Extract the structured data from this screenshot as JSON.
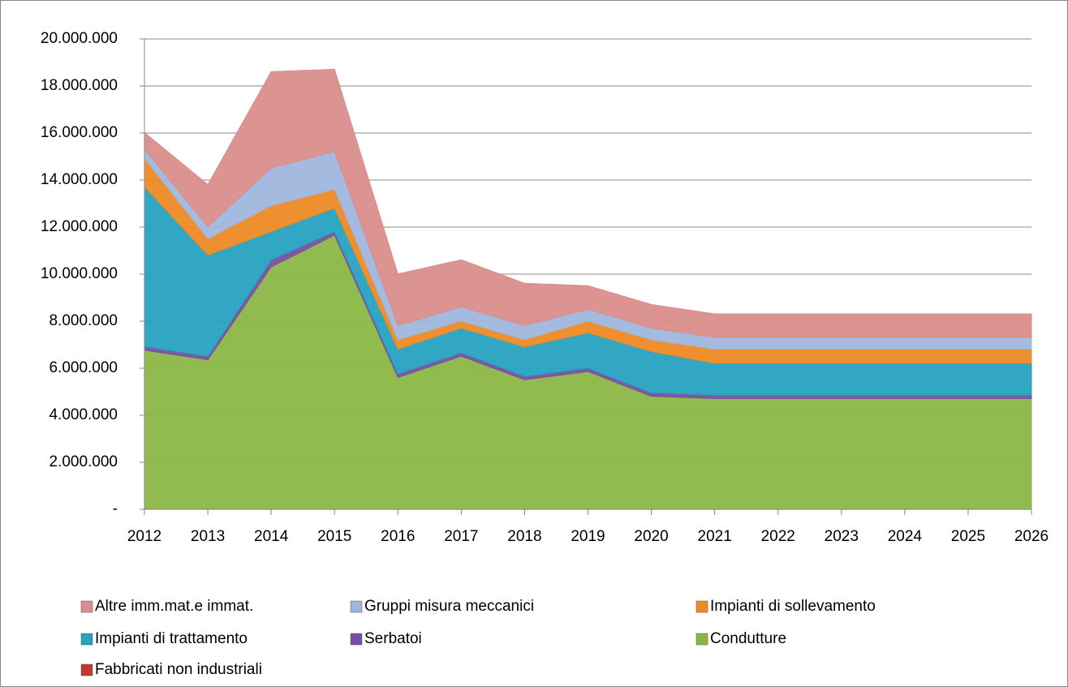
{
  "chart_data": {
    "type": "stacked_area",
    "categories": [
      "2012",
      "2013",
      "2014",
      "2015",
      "2016",
      "2017",
      "2018",
      "2019",
      "2020",
      "2021",
      "2022",
      "2023",
      "2024",
      "2025",
      "2026"
    ],
    "series": [
      {
        "name": "Altre imm.mat.e immat.",
        "color": "#d98e8c",
        "values": [
          700000,
          1800000,
          4100000,
          3500000,
          2200000,
          2000000,
          1800000,
          1000000,
          1000000,
          1000000,
          1000000,
          1000000,
          1000000,
          1000000,
          1000000
        ]
      },
      {
        "name": "Gruppi misura meccanici",
        "color": "#9fb6dc",
        "values": [
          400000,
          500000,
          1600000,
          1600000,
          600000,
          600000,
          600000,
          500000,
          500000,
          500000,
          500000,
          500000,
          500000,
          500000,
          500000
        ]
      },
      {
        "name": "Impianti di sollevamento",
        "color": "#ee8a25",
        "values": [
          1200000,
          700000,
          1100000,
          800000,
          400000,
          300000,
          300000,
          500000,
          500000,
          600000,
          600000,
          600000,
          600000,
          600000,
          600000
        ]
      },
      {
        "name": "Impianti di trattamento",
        "color": "#27a2c0",
        "values": [
          6800000,
          4300000,
          1200000,
          1000000,
          1050000,
          1050000,
          1250000,
          1500000,
          1750000,
          1350000,
          1350000,
          1350000,
          1350000,
          1350000,
          1350000
        ]
      },
      {
        "name": "Serbatoi",
        "color": "#7650a0",
        "values": [
          150000,
          150000,
          300000,
          150000,
          150000,
          150000,
          150000,
          150000,
          150000,
          150000,
          150000,
          150000,
          150000,
          150000,
          150000
        ]
      },
      {
        "name": "Condutture",
        "color": "#8bb646",
        "values": [
          6760000,
          6350000,
          10300000,
          11650000,
          5600000,
          6500000,
          5500000,
          5850000,
          4800000,
          4700000,
          4700000,
          4700000,
          4700000,
          4700000,
          4700000
        ]
      },
      {
        "name": "Fabbricati non industriali",
        "color": "#c0392b",
        "values": [
          10000,
          10000,
          10000,
          10000,
          10000,
          10000,
          10000,
          10000,
          10000,
          10000,
          10000,
          10000,
          10000,
          10000,
          10000
        ]
      }
    ],
    "ylim": [
      0,
      20000000
    ],
    "yticks": [
      {
        "value": 0,
        "label": "-"
      },
      {
        "value": 2000000,
        "label": "2.000.000"
      },
      {
        "value": 4000000,
        "label": "4.000.000"
      },
      {
        "value": 6000000,
        "label": "6.000.000"
      },
      {
        "value": 8000000,
        "label": "8.000.000"
      },
      {
        "value": 10000000,
        "label": "10.000.000"
      },
      {
        "value": 12000000,
        "label": "12.000.000"
      },
      {
        "value": 14000000,
        "label": "14.000.000"
      },
      {
        "value": 16000000,
        "label": "16.000.000"
      },
      {
        "value": 18000000,
        "label": "18.000.000"
      },
      {
        "value": 20000000,
        "label": "20.000.000"
      }
    ],
    "grid": true,
    "legend": "bottom"
  }
}
